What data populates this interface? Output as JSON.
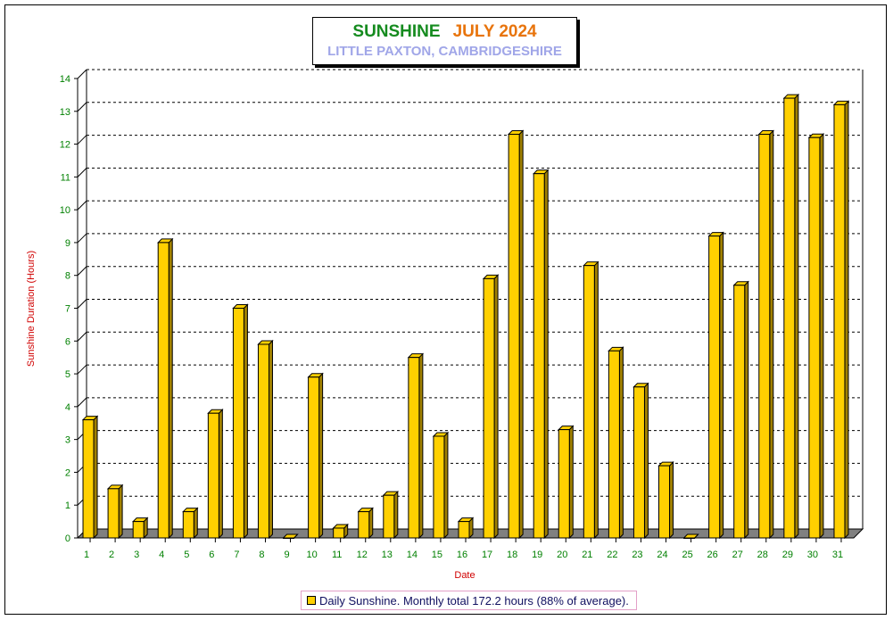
{
  "title": "SUNSHINE",
  "month": "JULY 2024",
  "subtitle": "LITTLE PAXTON, CAMBRIDGESHIRE",
  "legend": "Daily Sunshine. Monthly total 172.2 hours (88% of average).",
  "colors": {
    "bar": "#ffd000",
    "bar_side": "#a08000",
    "floor": "#808080",
    "tick_labels": "#008000",
    "axis_titles": "#d00000"
  },
  "chart_data": {
    "type": "bar",
    "title": "SUNSHINE   JULY 2024",
    "subtitle": "LITTLE PAXTON, CAMBRIDGESHIRE",
    "xlabel": "Date",
    "ylabel": "Sunshine Duration (Hours)",
    "ylim": [
      0,
      14
    ],
    "yticks": [
      0,
      1,
      2,
      3,
      4,
      5,
      6,
      7,
      8,
      9,
      10,
      11,
      12,
      13,
      14
    ],
    "grid": true,
    "legend_position": "bottom",
    "categories": [
      "1",
      "2",
      "3",
      "4",
      "5",
      "6",
      "7",
      "8",
      "9",
      "10",
      "11",
      "12",
      "13",
      "14",
      "15",
      "16",
      "17",
      "18",
      "19",
      "20",
      "21",
      "22",
      "23",
      "24",
      "25",
      "26",
      "27",
      "28",
      "29",
      "30",
      "31"
    ],
    "series": [
      {
        "name": "Daily Sunshine. Monthly total 172.2 hours (88% of average).",
        "values": [
          3.6,
          1.5,
          0.5,
          9.0,
          0.8,
          3.8,
          7.0,
          5.9,
          0.0,
          4.9,
          0.3,
          0.8,
          1.3,
          5.5,
          3.1,
          0.5,
          7.9,
          12.3,
          11.1,
          3.3,
          8.3,
          5.7,
          4.6,
          2.2,
          0.0,
          9.2,
          7.7,
          12.3,
          13.4,
          12.2,
          13.2
        ]
      }
    ]
  }
}
